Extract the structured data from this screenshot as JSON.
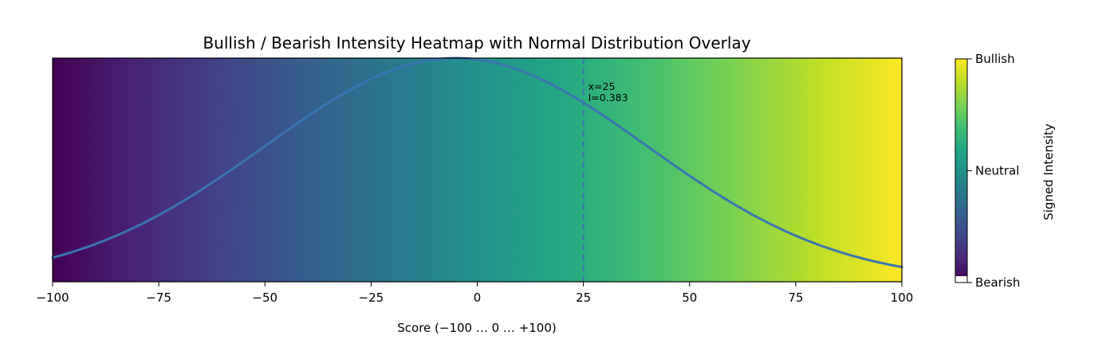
{
  "chart_data": {
    "type": "heatmap",
    "title": "Bullish / Bearish Intensity Heatmap with Normal Distribution Overlay",
    "xlabel": "Score (−100 … 0 … +100)",
    "ylabel": "",
    "xlim": [
      -100,
      100
    ],
    "x_ticks": [
      -100,
      -75,
      -50,
      -25,
      0,
      25,
      50,
      75,
      100
    ],
    "x_tick_labels": [
      "−100",
      "−75",
      "−50",
      "−25",
      "0",
      "25",
      "50",
      "75",
      "100"
    ],
    "colormap": "viridis",
    "colorbar": {
      "label": "Signed Intensity",
      "ticks": [
        {
          "value": -1,
          "label": "Bearish"
        },
        {
          "value": 0,
          "label": "Neutral"
        },
        {
          "value": 1,
          "label": "Bullish"
        }
      ]
    },
    "overlay_curve": {
      "name": "",
      "type": "normal-distribution",
      "mean": -5,
      "std": 45,
      "color": "#3a75b0",
      "x": [
        -100,
        -90,
        -80,
        -70,
        -60,
        -50,
        -40,
        -30,
        -20,
        -10,
        0,
        10,
        20,
        30,
        40,
        50,
        60,
        70,
        80,
        90,
        100
      ],
      "y": [
        0.11,
        0.17,
        0.25,
        0.35,
        0.47,
        0.6,
        0.72,
        0.84,
        0.93,
        0.99,
        0.99,
        0.95,
        0.86,
        0.74,
        0.61,
        0.48,
        0.36,
        0.26,
        0.18,
        0.12,
        0.11
      ]
    },
    "marker": {
      "x": 25,
      "style": "dashed",
      "color": "#3a75b0",
      "label_x": "x=25",
      "label_i": "I=0.383"
    },
    "grid": false
  }
}
